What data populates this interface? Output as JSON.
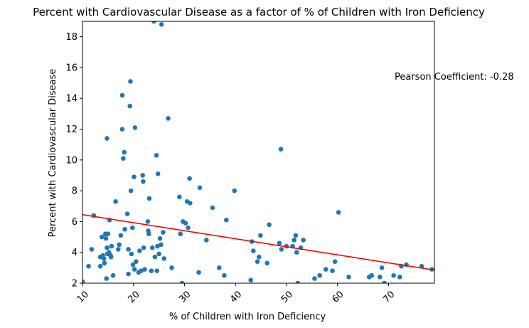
{
  "chart_data": {
    "type": "scatter",
    "title": "Percent with Cardiovascular Disease as a factor of % of Children with Iron Deficiency",
    "xlabel": "% of Children with Iron Deficiency",
    "ylabel": "Percent with Cardiovascular Disease",
    "xlim": [
      10,
      79
    ],
    "ylim": [
      2,
      19
    ],
    "xticks": [
      10,
      20,
      30,
      40,
      50,
      60,
      70
    ],
    "yticks": [
      2,
      4,
      6,
      8,
      10,
      12,
      14,
      16,
      18
    ],
    "xtick_rotation": -45,
    "grid": false,
    "legend": "none",
    "annotation": "Pearson Coefficient: -0.28",
    "point_color": "#1f77b4",
    "trend_color": "#ff0000",
    "trend_line": {
      "x": [
        10,
        79
      ],
      "y": [
        6.45,
        2.85
      ]
    },
    "points": [
      [
        10,
        2.1
      ],
      [
        11.2,
        3.1
      ],
      [
        11.8,
        4.2
      ],
      [
        12.2,
        6.4
      ],
      [
        13.5,
        3.1
      ],
      [
        13.5,
        3.7
      ],
      [
        13.8,
        5.0
      ],
      [
        14.0,
        3.8
      ],
      [
        14.2,
        3.6
      ],
      [
        14.3,
        3.3
      ],
      [
        14.5,
        5.2
      ],
      [
        14.6,
        4.9
      ],
      [
        14.7,
        2.3
      ],
      [
        14.8,
        11.4
      ],
      [
        14.8,
        4.3
      ],
      [
        14.9,
        3.9
      ],
      [
        15.0,
        5.2
      ],
      [
        15.2,
        4.0
      ],
      [
        15.3,
        6.1
      ],
      [
        15.5,
        3.8
      ],
      [
        15.6,
        3.7
      ],
      [
        15.7,
        4.4
      ],
      [
        16.0,
        2.5
      ],
      [
        16.5,
        7.3
      ],
      [
        17.0,
        4.2
      ],
      [
        17.2,
        4.5
      ],
      [
        17.5,
        5.1
      ],
      [
        17.8,
        14.2
      ],
      [
        17.8,
        12.0
      ],
      [
        18.0,
        10.1
      ],
      [
        18.2,
        10.5
      ],
      [
        18.3,
        5.5
      ],
      [
        18.8,
        6.5
      ],
      [
        19.0,
        4.2
      ],
      [
        19.0,
        2.6
      ],
      [
        19.3,
        13.5
      ],
      [
        19.4,
        15.1
      ],
      [
        19.5,
        8.0
      ],
      [
        19.6,
        3.9
      ],
      [
        19.8,
        5.6
      ],
      [
        19.9,
        3.2
      ],
      [
        20.1,
        8.9
      ],
      [
        20.2,
        2.9
      ],
      [
        20.3,
        12.1
      ],
      [
        20.5,
        3.4
      ],
      [
        21.0,
        2.7
      ],
      [
        21.2,
        4.1
      ],
      [
        21.5,
        2.8
      ],
      [
        21.8,
        9.0
      ],
      [
        21.9,
        8.6
      ],
      [
        22.0,
        4.3
      ],
      [
        22.2,
        2.9
      ],
      [
        22.8,
        6.0
      ],
      [
        22.9,
        5.4
      ],
      [
        23.0,
        5.2
      ],
      [
        23.1,
        7.5
      ],
      [
        23.5,
        2.8
      ],
      [
        23.7,
        4.3
      ],
      [
        24.0,
        19.0
      ],
      [
        24.2,
        3.7
      ],
      [
        24.5,
        10.3
      ],
      [
        24.6,
        2.8
      ],
      [
        24.7,
        4.4
      ],
      [
        24.8,
        9.1
      ],
      [
        25.0,
        3.9
      ],
      [
        25.2,
        4.9
      ],
      [
        25.4,
        4.5
      ],
      [
        25.5,
        18.8
      ],
      [
        25.8,
        5.3
      ],
      [
        26.0,
        3.6
      ],
      [
        26.8,
        12.7
      ],
      [
        27.5,
        3.0
      ],
      [
        29.0,
        7.6
      ],
      [
        29.2,
        5.2
      ],
      [
        29.5,
        2.0
      ],
      [
        29.7,
        6.0
      ],
      [
        30.2,
        5.9
      ],
      [
        30.5,
        7.3
      ],
      [
        30.7,
        5.6
      ],
      [
        31.0,
        8.8
      ],
      [
        31.1,
        7.2
      ],
      [
        32.8,
        2.7
      ],
      [
        33.0,
        8.2
      ],
      [
        34.3,
        4.8
      ],
      [
        35.5,
        6.9
      ],
      [
        36.8,
        3.0
      ],
      [
        37.8,
        2.5
      ],
      [
        38.2,
        6.1
      ],
      [
        39.8,
        8.0
      ],
      [
        43.0,
        2.2
      ],
      [
        43.2,
        4.7
      ],
      [
        43.5,
        4.1
      ],
      [
        44.3,
        3.4
      ],
      [
        44.6,
        3.7
      ],
      [
        44.9,
        5.1
      ],
      [
        46.2,
        3.3
      ],
      [
        46.6,
        5.8
      ],
      [
        48.6,
        4.6
      ],
      [
        48.9,
        10.7
      ],
      [
        49.0,
        4.2
      ],
      [
        50.0,
        4.4
      ],
      [
        51.2,
        4.4
      ],
      [
        51.5,
        4.8
      ],
      [
        51.8,
        5.1
      ],
      [
        52.0,
        4.0
      ],
      [
        52.2,
        2.0
      ],
      [
        52.8,
        4.3
      ],
      [
        53.3,
        4.8
      ],
      [
        55.5,
        2.3
      ],
      [
        56.5,
        2.5
      ],
      [
        57.7,
        2.9
      ],
      [
        59.0,
        2.8
      ],
      [
        59.5,
        3.4
      ],
      [
        60.2,
        6.6
      ],
      [
        62.2,
        2.4
      ],
      [
        66.2,
        2.4
      ],
      [
        66.7,
        2.5
      ],
      [
        68.3,
        2.4
      ],
      [
        68.7,
        3.0
      ],
      [
        69.2,
        2.0
      ],
      [
        71.0,
        2.5
      ],
      [
        72.2,
        2.4
      ],
      [
        72.5,
        3.1
      ],
      [
        73.5,
        3.2
      ],
      [
        76.5,
        3.1
      ],
      [
        78.5,
        2.9
      ]
    ]
  }
}
